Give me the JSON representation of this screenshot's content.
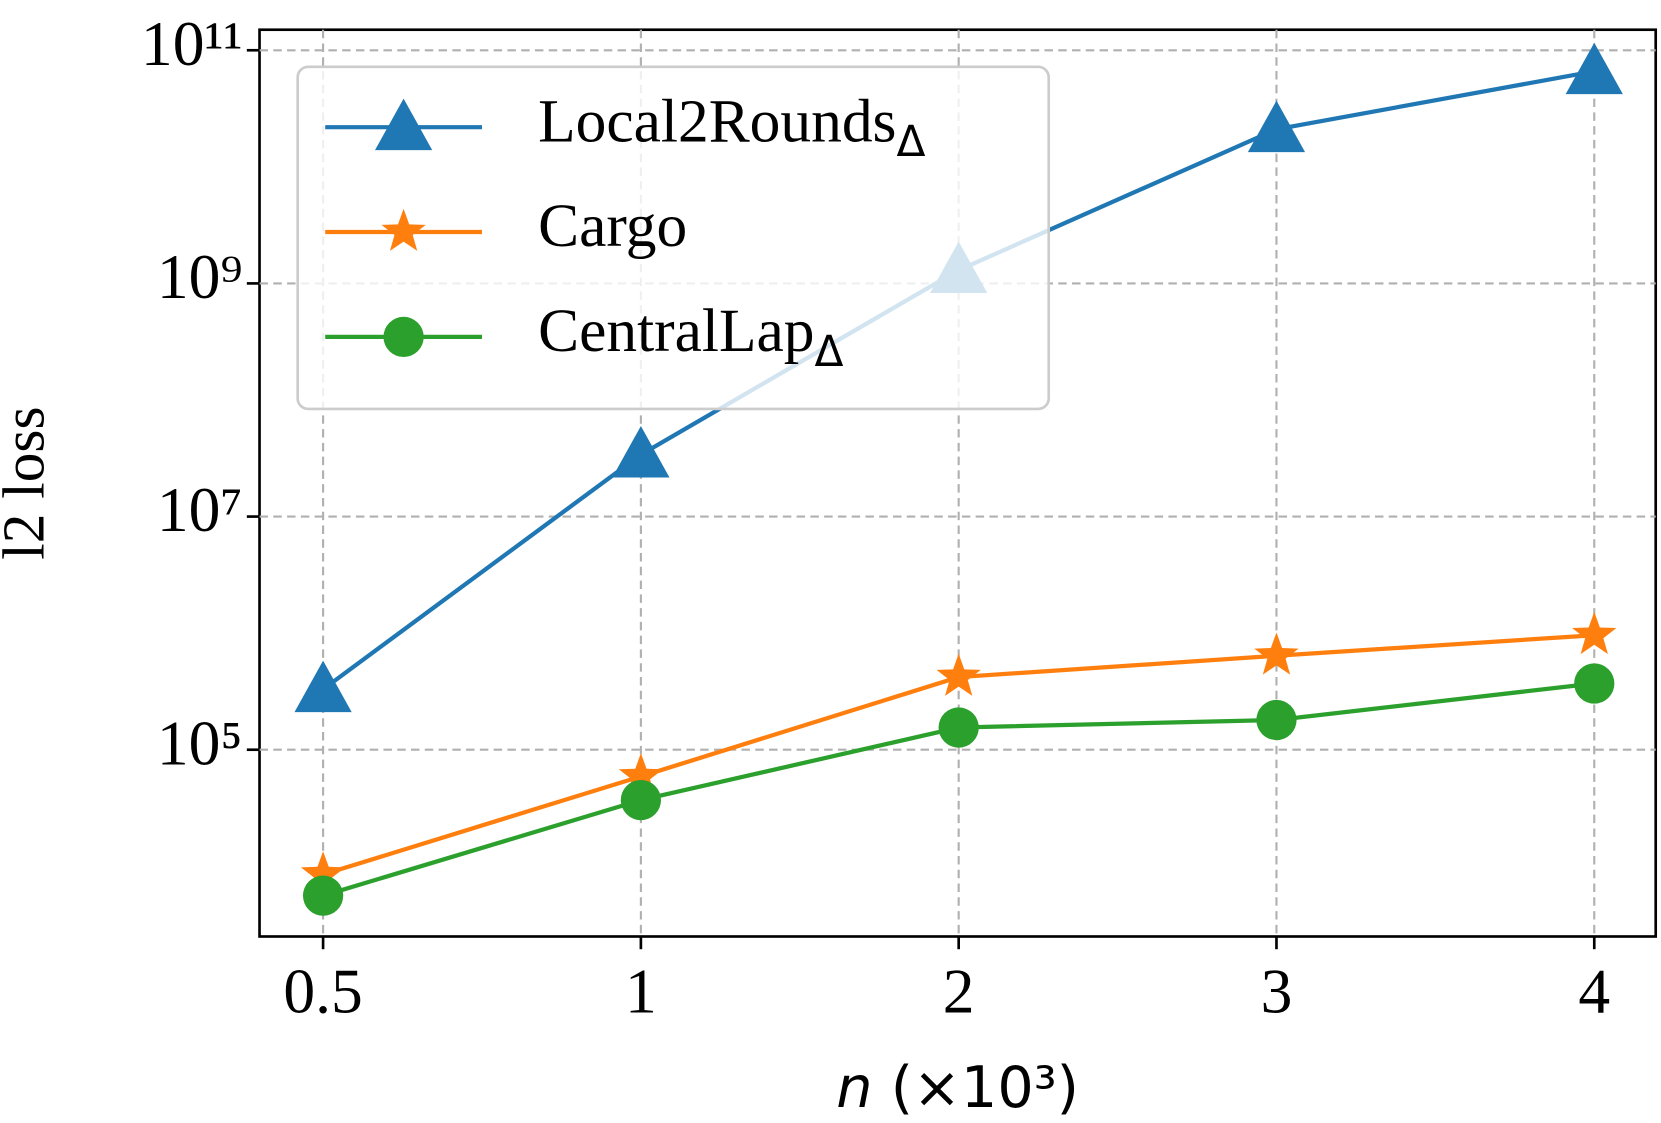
{
  "chart_data": {
    "type": "line",
    "x_label": "n (×10³)",
    "y_label": "l2 loss",
    "categories": [
      "0.5",
      "1",
      "2",
      "3",
      "4"
    ],
    "y_scale": "log",
    "ylim": [
      2500,
      150000000000
    ],
    "yticks": [
      {
        "value": 100000,
        "label": "10⁵"
      },
      {
        "value": 10000000,
        "label": "10⁷"
      },
      {
        "value": 1000000000,
        "label": "10⁹"
      },
      {
        "value": 100000000000,
        "label": "10¹¹"
      }
    ],
    "grid": true,
    "legend": "upper left",
    "series": [
      {
        "name": "Local2RoundsΔ",
        "color": "#1f77b4",
        "marker": "triangle",
        "values": [
          330000,
          34000000,
          1300000000,
          21000000000,
          66000000000
        ]
      },
      {
        "name": "Cargo",
        "color": "#ff7f0e",
        "marker": "star",
        "values": [
          8500,
          59000,
          420000,
          640000,
          960000
        ]
      },
      {
        "name": "CentralLapΔ",
        "color": "#2ca02c",
        "marker": "circle",
        "values": [
          5600,
          37000,
          155000,
          180000,
          370000
        ]
      }
    ]
  }
}
